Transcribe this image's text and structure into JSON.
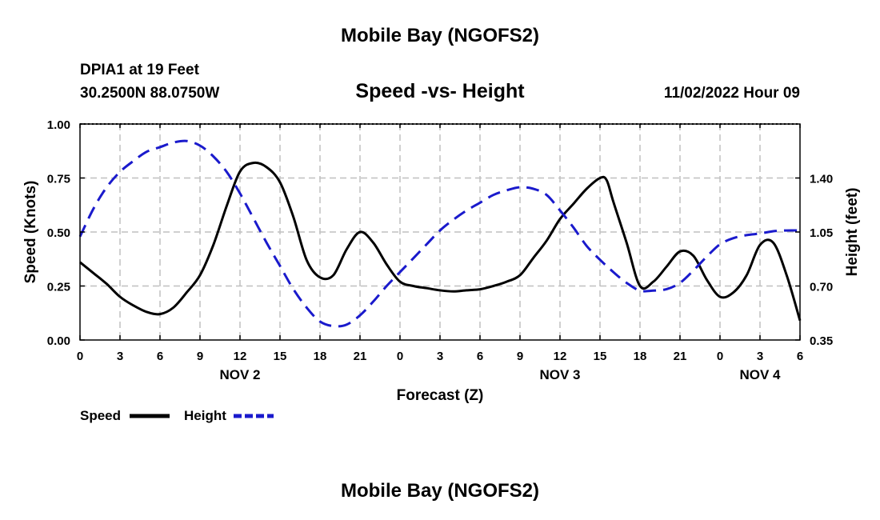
{
  "header": {
    "title": "Mobile Bay (NGOFS2)",
    "station": "DPIA1 at 19 Feet",
    "coords": "30.2500N  88.0750W",
    "subtitle": "Speed -vs- Height",
    "datetime": "11/02/2022 Hour 09",
    "bottom_title": "Mobile Bay (NGOFS2)"
  },
  "chart_data": {
    "type": "line",
    "title": "Speed -vs- Height",
    "xlabel": "Forecast (Z)",
    "ylabel": "Speed (Knots)",
    "y2label": "Height (feet)",
    "x_range_hours": [
      0,
      54
    ],
    "ylim": [
      0,
      1
    ],
    "y2lim": [
      0.35,
      1.75
    ],
    "x_ticks": [
      {
        "h": 0,
        "label": "0"
      },
      {
        "h": 3,
        "label": "3"
      },
      {
        "h": 6,
        "label": "6"
      },
      {
        "h": 9,
        "label": "9"
      },
      {
        "h": 12,
        "label": "12"
      },
      {
        "h": 15,
        "label": "15"
      },
      {
        "h": 18,
        "label": "18"
      },
      {
        "h": 21,
        "label": "21"
      },
      {
        "h": 24,
        "label": "0"
      },
      {
        "h": 27,
        "label": "3"
      },
      {
        "h": 30,
        "label": "6"
      },
      {
        "h": 33,
        "label": "9"
      },
      {
        "h": 36,
        "label": "12"
      },
      {
        "h": 39,
        "label": "15"
      },
      {
        "h": 42,
        "label": "18"
      },
      {
        "h": 45,
        "label": "21"
      },
      {
        "h": 48,
        "label": "0"
      },
      {
        "h": 51,
        "label": "3"
      },
      {
        "h": 54,
        "label": "6"
      }
    ],
    "date_labels": [
      {
        "h": 12,
        "label": "NOV 2"
      },
      {
        "h": 36,
        "label": "NOV 3"
      },
      {
        "h": 51,
        "label": "NOV 4"
      }
    ],
    "y_ticks": [
      {
        "v": 0,
        "label": "0.00"
      },
      {
        "v": 0.25,
        "label": "0.25"
      },
      {
        "v": 0.5,
        "label": "0.50"
      },
      {
        "v": 0.75,
        "label": "0.75"
      },
      {
        "v": 1.0,
        "label": "1.00"
      }
    ],
    "y2_ticks": [
      {
        "v": 0.35,
        "label": "0.35"
      },
      {
        "v": 0.7,
        "label": "0.70"
      },
      {
        "v": 1.05,
        "label": "1.05"
      },
      {
        "v": 1.4,
        "label": "1.40"
      }
    ],
    "series": [
      {
        "name": "Speed",
        "axis": "left",
        "color": "#000000",
        "dash": "solid",
        "points": [
          [
            0,
            0.36
          ],
          [
            1,
            0.31
          ],
          [
            2,
            0.26
          ],
          [
            3,
            0.2
          ],
          [
            4,
            0.16
          ],
          [
            5,
            0.13
          ],
          [
            6,
            0.12
          ],
          [
            7,
            0.15
          ],
          [
            8,
            0.22
          ],
          [
            9,
            0.3
          ],
          [
            10,
            0.44
          ],
          [
            11,
            0.62
          ],
          [
            12,
            0.78
          ],
          [
            13,
            0.82
          ],
          [
            14,
            0.8
          ],
          [
            15,
            0.73
          ],
          [
            16,
            0.57
          ],
          [
            17,
            0.37
          ],
          [
            18,
            0.29
          ],
          [
            19,
            0.3
          ],
          [
            20,
            0.42
          ],
          [
            21,
            0.5
          ],
          [
            22,
            0.45
          ],
          [
            23,
            0.35
          ],
          [
            24,
            0.27
          ],
          [
            25,
            0.25
          ],
          [
            26,
            0.24
          ],
          [
            27,
            0.23
          ],
          [
            28,
            0.225
          ],
          [
            29,
            0.23
          ],
          [
            30,
            0.235
          ],
          [
            31,
            0.25
          ],
          [
            32,
            0.27
          ],
          [
            33,
            0.3
          ],
          [
            34,
            0.38
          ],
          [
            35,
            0.46
          ],
          [
            36,
            0.56
          ],
          [
            37,
            0.63
          ],
          [
            38,
            0.7
          ],
          [
            39,
            0.75
          ],
          [
            39.5,
            0.74
          ],
          [
            40,
            0.64
          ],
          [
            41,
            0.45
          ],
          [
            42,
            0.25
          ],
          [
            43,
            0.27
          ],
          [
            44,
            0.34
          ],
          [
            45,
            0.41
          ],
          [
            46,
            0.39
          ],
          [
            47,
            0.28
          ],
          [
            48,
            0.2
          ],
          [
            49,
            0.22
          ],
          [
            50,
            0.3
          ],
          [
            51,
            0.44
          ],
          [
            52,
            0.45
          ],
          [
            53,
            0.3
          ],
          [
            54,
            0.09
          ]
        ]
      },
      {
        "name": "Height",
        "axis": "right",
        "color": "#1a1acc",
        "dash": "dashed",
        "points": [
          [
            0,
            1.02
          ],
          [
            1,
            1.2
          ],
          [
            2,
            1.34
          ],
          [
            3,
            1.44
          ],
          [
            4,
            1.51
          ],
          [
            5,
            1.57
          ],
          [
            6,
            1.6
          ],
          [
            7,
            1.63
          ],
          [
            8,
            1.64
          ],
          [
            9,
            1.61
          ],
          [
            10,
            1.54
          ],
          [
            11,
            1.44
          ],
          [
            12,
            1.3
          ],
          [
            13,
            1.14
          ],
          [
            14,
            0.98
          ],
          [
            15,
            0.83
          ],
          [
            16,
            0.68
          ],
          [
            17,
            0.56
          ],
          [
            18,
            0.47
          ],
          [
            19,
            0.44
          ],
          [
            20,
            0.45
          ],
          [
            21,
            0.51
          ],
          [
            22,
            0.6
          ],
          [
            23,
            0.7
          ],
          [
            24,
            0.79
          ],
          [
            25,
            0.88
          ],
          [
            26,
            0.97
          ],
          [
            27,
            1.06
          ],
          [
            28,
            1.13
          ],
          [
            29,
            1.19
          ],
          [
            30,
            1.24
          ],
          [
            31,
            1.29
          ],
          [
            32,
            1.32
          ],
          [
            33,
            1.34
          ],
          [
            34,
            1.33
          ],
          [
            35,
            1.29
          ],
          [
            36,
            1.19
          ],
          [
            37,
            1.08
          ],
          [
            38,
            0.96
          ],
          [
            39,
            0.87
          ],
          [
            40,
            0.79
          ],
          [
            41,
            0.72
          ],
          [
            42,
            0.67
          ],
          [
            43,
            0.67
          ],
          [
            44,
            0.68
          ],
          [
            45,
            0.72
          ],
          [
            46,
            0.8
          ],
          [
            47,
            0.89
          ],
          [
            48,
            0.97
          ],
          [
            49,
            1.01
          ],
          [
            50,
            1.03
          ],
          [
            51,
            1.04
          ],
          [
            52,
            1.055
          ],
          [
            53,
            1.06
          ],
          [
            54,
            1.06
          ]
        ]
      }
    ],
    "legend": [
      {
        "label": "Speed",
        "color": "#000000",
        "dash": "solid"
      },
      {
        "label": "Height",
        "color": "#1a1acc",
        "dash": "dashed"
      }
    ]
  }
}
